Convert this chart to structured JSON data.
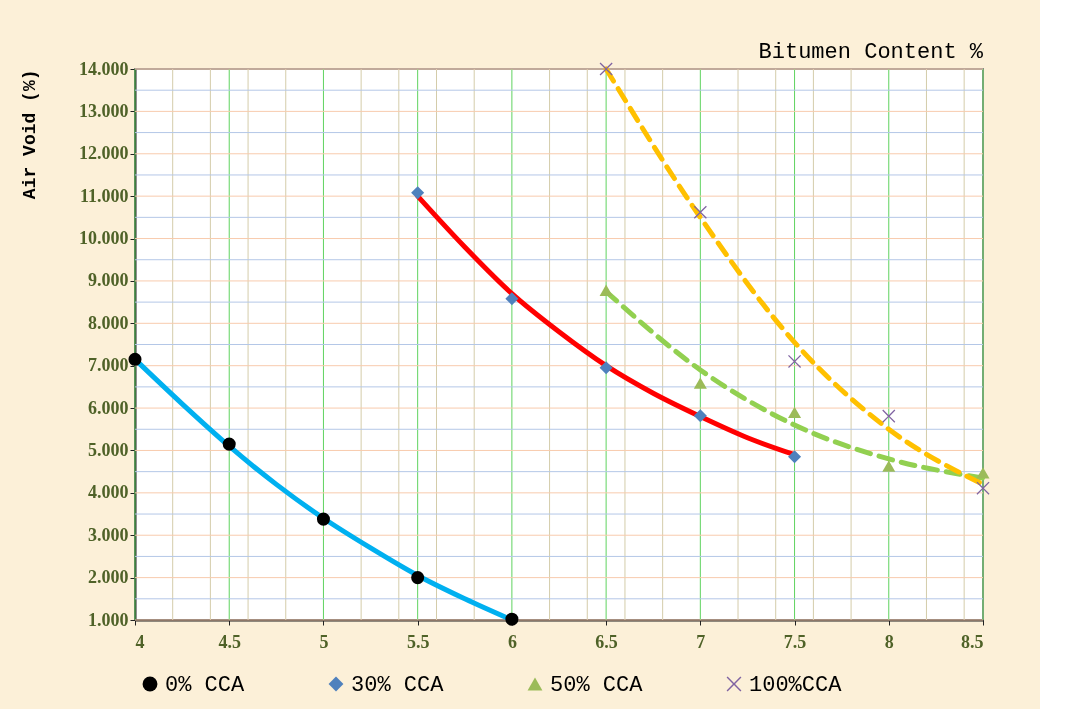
{
  "chart_data": {
    "type": "scatter",
    "xlabel": "Bitumen Content %",
    "ylabel": "Air Void (%)",
    "xlim": [
      4,
      8.5
    ],
    "ylim": [
      1,
      14
    ],
    "xticks": [
      4,
      {
        "value": 4.2,
        "label": null
      },
      {
        "value": 4.4,
        "label": null
      },
      4.5,
      {
        "value": 4.6,
        "label": null
      },
      {
        "value": 4.8,
        "label": null
      },
      5,
      {
        "value": 5.2,
        "label": null
      },
      {
        "value": 5.4,
        "label": null
      },
      5.5,
      {
        "value": 5.6,
        "label": null
      },
      {
        "value": 5.8,
        "label": null
      },
      6,
      {
        "value": 6.2,
        "label": null
      },
      {
        "value": 6.4,
        "label": null
      },
      6.5,
      {
        "value": 6.6,
        "label": null
      },
      {
        "value": 6.8,
        "label": null
      },
      7,
      {
        "value": 7.2,
        "label": null
      },
      {
        "value": 7.4,
        "label": null
      },
      7.5,
      {
        "value": 7.6,
        "label": null
      },
      {
        "value": 7.8,
        "label": null
      },
      8,
      {
        "value": 8.2,
        "label": null
      },
      {
        "value": 8.4,
        "label": null
      },
      8.5
    ],
    "yticks": [
      {
        "value": 1,
        "label": "1.000"
      },
      {
        "value": 1.5,
        "label": null
      },
      {
        "value": 2,
        "label": "2.000"
      },
      {
        "value": 2.5,
        "label": null
      },
      {
        "value": 3,
        "label": "3.000"
      },
      {
        "value": 3.5,
        "label": null
      },
      {
        "value": 4,
        "label": "4.000"
      },
      {
        "value": 4.5,
        "label": null
      },
      {
        "value": 5,
        "label": "5.000"
      },
      {
        "value": 5.5,
        "label": null
      },
      {
        "value": 6,
        "label": "6.000"
      },
      {
        "value": 6.5,
        "label": null
      },
      {
        "value": 7,
        "label": "7.000"
      },
      {
        "value": 7.5,
        "label": null
      },
      {
        "value": 8,
        "label": "8.000"
      },
      {
        "value": 8.5,
        "label": null
      },
      {
        "value": 9,
        "label": "9.000"
      },
      {
        "value": 9.5,
        "label": null
      },
      {
        "value": 10,
        "label": "10.000"
      },
      {
        "value": 10.5,
        "label": null
      },
      {
        "value": 11,
        "label": "11.000"
      },
      {
        "value": 11.5,
        "label": null
      },
      {
        "value": 12,
        "label": "12.000"
      },
      {
        "value": 12.5,
        "label": null
      },
      {
        "value": 13,
        "label": "13.000"
      },
      {
        "value": 13.5,
        "label": null
      },
      {
        "value": 14,
        "label": "14.000"
      }
    ],
    "grid": true,
    "legend": "bottom",
    "series": [
      {
        "type": "line",
        "color": "#00b0f0",
        "marker": "none",
        "line_style": "solid",
        "x": [
          4,
          4.25,
          4.5,
          4.75,
          5,
          5.25,
          5.5,
          5.75,
          6
        ],
        "values": [
          7.15,
          6.1,
          5.1,
          4.2,
          3.4,
          2.7,
          2.05,
          1.5,
          1.0
        ]
      },
      {
        "type": "line",
        "color": "#ff0000",
        "marker": "none",
        "line_style": "solid",
        "x": [
          5.5,
          5.75,
          6,
          6.25,
          6.5,
          6.75,
          7,
          7.25,
          7.5
        ],
        "values": [
          11.0,
          9.8,
          8.7,
          7.8,
          7.0,
          6.35,
          5.8,
          5.3,
          4.9
        ]
      },
      {
        "type": "line",
        "color": "#92d050",
        "marker": "none",
        "line_style": "dashed",
        "x": [
          6.5,
          7,
          7.5,
          8,
          8.5
        ],
        "values": [
          8.75,
          6.9,
          5.6,
          4.8,
          4.35
        ]
      },
      {
        "type": "line",
        "color": "#ffc000",
        "marker": "none",
        "line_style": "dashed",
        "x": [
          6.5,
          7,
          7.5,
          8,
          8.5
        ],
        "values": [
          14.0,
          10.5,
          7.55,
          5.5,
          4.2
        ]
      },
      {
        "type": "scatter",
        "name": "0% CCA",
        "color": "#000000",
        "marker": "circle",
        "x": [
          4,
          4.5,
          5,
          5.5,
          6
        ],
        "values": [
          7.15,
          5.15,
          3.38,
          2.0,
          1.02
        ]
      },
      {
        "type": "scatter",
        "name": "30% CCA",
        "color": "#4f81bd",
        "marker": "diamond",
        "x": [
          5.5,
          6,
          6.5,
          7,
          7.5
        ],
        "values": [
          11.08,
          8.58,
          6.95,
          5.82,
          4.85
        ]
      },
      {
        "type": "scatter",
        "name": "50% CCA",
        "color": "#9bbb59",
        "marker": "triangle",
        "x": [
          6.5,
          7,
          7.5,
          8,
          8.5
        ],
        "values": [
          8.78,
          6.59,
          5.9,
          4.63,
          4.47
        ]
      },
      {
        "type": "scatter",
        "name": "100%CCA",
        "color": "#8064a2",
        "marker": "cross",
        "x": [
          6.5,
          7,
          7.5,
          8,
          8.5
        ],
        "values": [
          14.0,
          10.62,
          7.1,
          5.81,
          4.11
        ]
      }
    ]
  }
}
